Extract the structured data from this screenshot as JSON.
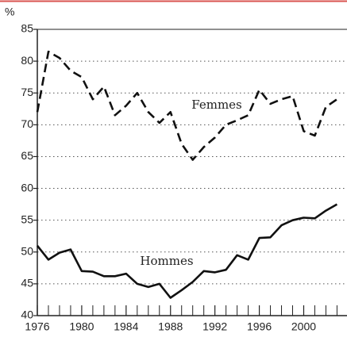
{
  "chart_data": {
    "type": "line",
    "y_unit_label": "%",
    "x": [
      1976,
      1977,
      1978,
      1979,
      1980,
      1981,
      1982,
      1983,
      1984,
      1985,
      1986,
      1987,
      1988,
      1989,
      1990,
      1991,
      1992,
      1993,
      1994,
      1995,
      1996,
      1997,
      1998,
      1999,
      2000,
      2001,
      2002,
      2003
    ],
    "series": [
      {
        "name": "Femmes",
        "color": "#111111",
        "dash": true,
        "values": [
          72,
          81.5,
          80.5,
          78.5,
          77.5,
          74,
          76,
          71.5,
          73,
          75,
          72,
          70.3,
          72,
          67,
          64.5,
          66.5,
          68,
          70,
          70.7,
          71.5,
          75.5,
          73.3,
          74,
          74.5,
          69,
          68.3,
          72.8,
          74
        ]
      },
      {
        "name": "Hommes",
        "color": "#111111",
        "dash": false,
        "values": [
          51,
          48.8,
          49.9,
          50.4,
          47,
          46.9,
          46.2,
          46.2,
          46.6,
          45,
          44.5,
          45,
          42.8,
          44,
          45.3,
          47,
          46.8,
          47.2,
          49.5,
          48.8,
          52.2,
          52.3,
          54.2,
          55,
          55.4,
          55.3,
          56.5,
          57.5
        ]
      }
    ],
    "xlim": [
      1976,
      2003.9
    ],
    "xticks": [
      1976,
      1980,
      1984,
      1988,
      1992,
      1996,
      2000
    ],
    "xminor_ticks": [
      1977,
      1978,
      1979,
      1981,
      1982,
      1983,
      1985,
      1986,
      1987,
      1989,
      1990,
      1991,
      1993,
      1994,
      1995,
      1997,
      1998,
      1999,
      2001,
      2002,
      2003
    ],
    "ylim": [
      40,
      85
    ],
    "yticks": [
      40,
      45,
      50,
      55,
      60,
      65,
      70,
      75,
      80,
      85
    ],
    "grid": true
  }
}
